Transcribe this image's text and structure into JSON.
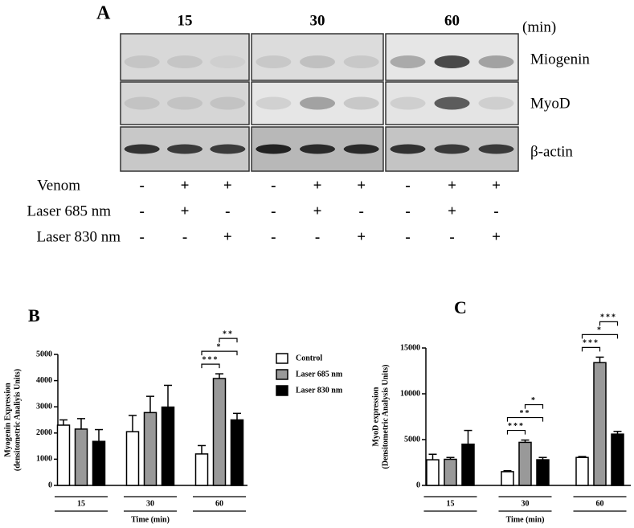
{
  "panel_a": {
    "label": "A",
    "times": [
      "15",
      "30",
      "60"
    ],
    "unit": "(min)",
    "rows": [
      "Miogenin",
      "MyoD",
      "β-actin"
    ],
    "treatments": [
      {
        "label": "Venom",
        "signs": [
          "-",
          "+",
          "+",
          "-",
          "+",
          "+",
          "-",
          "+",
          "+"
        ]
      },
      {
        "label": "Laser 685 nm",
        "signs": [
          "-",
          "+",
          "-",
          "-",
          "+",
          "-",
          "-",
          "+",
          "-"
        ]
      },
      {
        "label": "Laser 830 nm",
        "signs": [
          "-",
          "-",
          "+",
          "-",
          "-",
          "+",
          "-",
          "-",
          "+"
        ]
      }
    ]
  },
  "chart_data": [
    {
      "type": "bar",
      "panel_label": "B",
      "ylabel": [
        "Myogenin Expression",
        "(densitometric Analiyis Units)"
      ],
      "xlabel": "Time (min)",
      "categories": [
        "15",
        "30",
        "60"
      ],
      "ylim": [
        0,
        5000
      ],
      "yticks": [
        0,
        1000,
        2000,
        3000,
        4000,
        5000
      ],
      "legend": true,
      "series": [
        {
          "name": "Control",
          "color": "#ffffff",
          "values": [
            2300,
            2050,
            1200
          ],
          "errors": [
            200,
            620,
            320
          ]
        },
        {
          "name": "Laser 685 nm",
          "color": "#999999",
          "values": [
            2150,
            2780,
            4080
          ],
          "errors": [
            400,
            620,
            180
          ]
        },
        {
          "name": "Laser 830 nm",
          "color": "#000000",
          "values": [
            1680,
            2990,
            2500
          ],
          "errors": [
            450,
            830,
            250
          ]
        }
      ],
      "annotations": [
        {
          "text": "***",
          "category": 2,
          "from": 0,
          "to": 1
        },
        {
          "text": "*",
          "category": 2,
          "from": 0,
          "to": 2
        },
        {
          "text": "**",
          "category": 2,
          "from": 1,
          "to": 2
        }
      ]
    },
    {
      "type": "bar",
      "panel_label": "C",
      "ylabel": [
        "MyoD expression",
        "(Densitometric Analysis Units)"
      ],
      "xlabel": "Time (min)",
      "categories": [
        "15",
        "30",
        "60"
      ],
      "ylim": [
        0,
        15000
      ],
      "yticks": [
        0,
        5000,
        10000,
        15000
      ],
      "legend": false,
      "series": [
        {
          "color": "#ffffff",
          "values": [
            2800,
            1500,
            3050
          ],
          "errors": [
            600,
            100,
            100
          ]
        },
        {
          "color": "#999999",
          "values": [
            2850,
            4700,
            13400
          ],
          "errors": [
            200,
            250,
            600
          ]
        },
        {
          "color": "#000000",
          "values": [
            4500,
            2800,
            5600
          ],
          "errors": [
            1500,
            250,
            300
          ]
        }
      ],
      "annotations": [
        {
          "text": "***",
          "category": 1,
          "from": 0,
          "to": 1
        },
        {
          "text": "**",
          "category": 1,
          "from": 0,
          "to": 2
        },
        {
          "text": "*",
          "category": 1,
          "from": 1,
          "to": 2
        },
        {
          "text": "***",
          "category": 2,
          "from": 0,
          "to": 1
        },
        {
          "text": "*",
          "category": 2,
          "from": 0,
          "to": 2
        },
        {
          "text": "***",
          "category": 2,
          "from": 1,
          "to": 2
        }
      ]
    }
  ]
}
